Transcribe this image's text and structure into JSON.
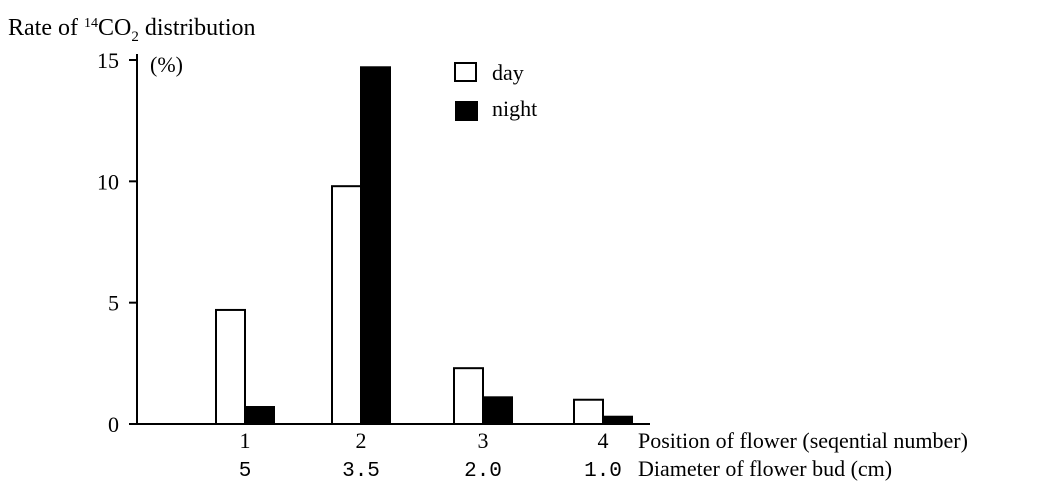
{
  "chart_data": {
    "type": "bar",
    "title_prefix": "Rate of ",
    "title_isotope": "14",
    "title_molecule": "CO",
    "title_subscript": "2",
    "title_suffix": " distribution",
    "ylabel_unit": "(%)",
    "categories": [
      "1",
      "2",
      "3",
      "4"
    ],
    "secondary_categories": [
      "5",
      "3.5",
      "2.0",
      "1.0"
    ],
    "xlabel": "Position of flower (seqential number)",
    "secondary_xlabel": "Diameter of flower bud (cm)",
    "ylim": [
      0,
      15
    ],
    "yticks": [
      0,
      5,
      10,
      15
    ],
    "grid": false,
    "legend_position": "top-center",
    "series": [
      {
        "name": "day",
        "values": [
          4.7,
          9.8,
          2.3,
          1.0
        ],
        "fill": "#ffffff"
      },
      {
        "name": "night",
        "values": [
          0.7,
          14.7,
          1.1,
          0.3
        ],
        "fill": "#000000"
      }
    ]
  }
}
